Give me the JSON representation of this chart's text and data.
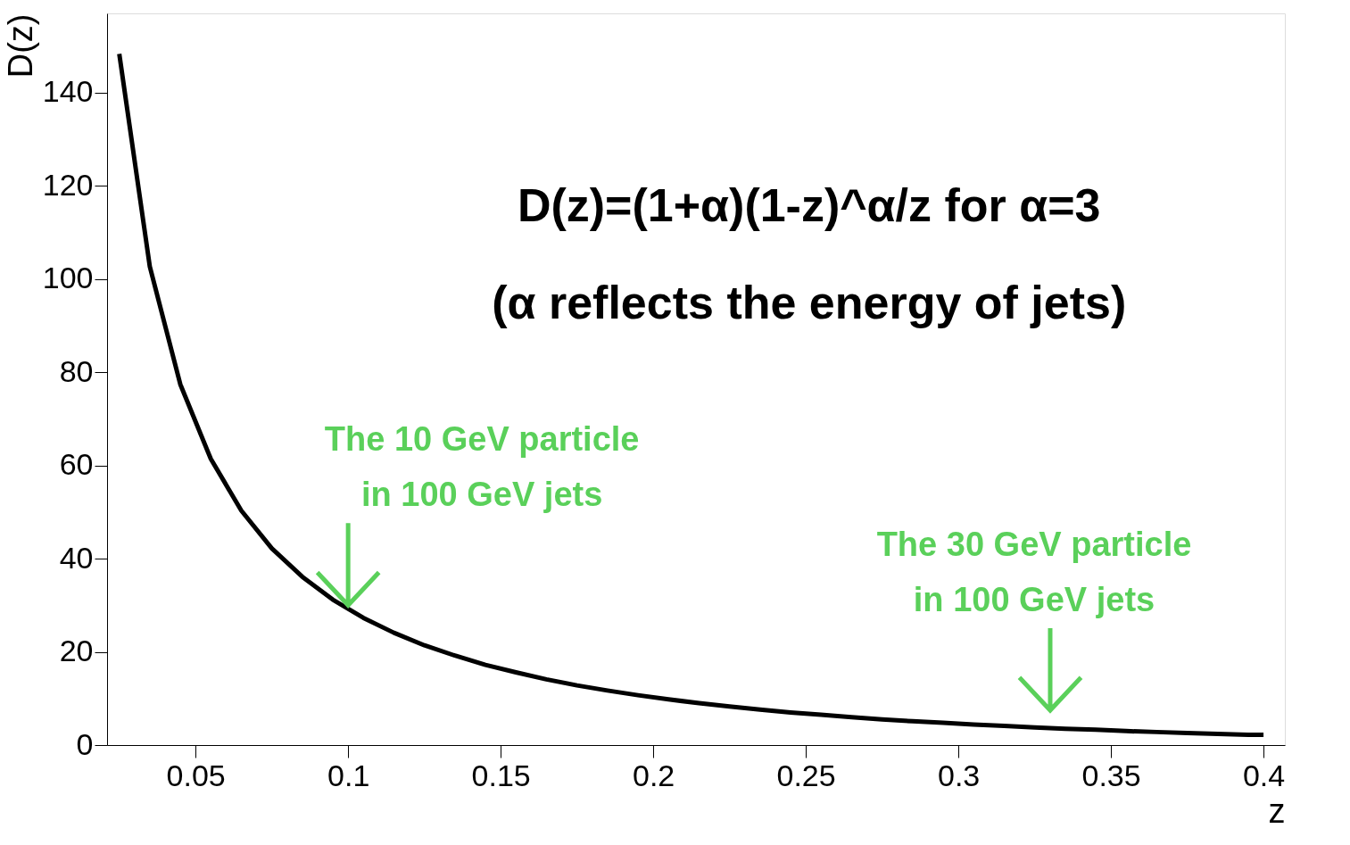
{
  "chart_data": {
    "type": "line",
    "xlabel": "z",
    "ylabel": "D(z)",
    "x": [
      0.025,
      0.035,
      0.045,
      0.055,
      0.065,
      0.075,
      0.085,
      0.095,
      0.105,
      0.115,
      0.125,
      0.135,
      0.145,
      0.155,
      0.165,
      0.175,
      0.185,
      0.195,
      0.205,
      0.215,
      0.225,
      0.235,
      0.245,
      0.255,
      0.265,
      0.275,
      0.285,
      0.295,
      0.305,
      0.315,
      0.325,
      0.335,
      0.345,
      0.355,
      0.365,
      0.375,
      0.385,
      0.395,
      0.4
    ],
    "series": [
      {
        "color": "#000000",
        "values": [
          148.3,
          102.7,
          77.4,
          61.4,
          50.3,
          42.2,
          36.1,
          31.2,
          27.3,
          24.1,
          21.4,
          19.2,
          17.2,
          15.6,
          14.1,
          12.8,
          11.7,
          10.7,
          9.8,
          9.0,
          8.3,
          7.6,
          7.0,
          6.5,
          6.0,
          5.5,
          5.1,
          4.8,
          4.4,
          4.1,
          3.8,
          3.5,
          3.3,
          3.0,
          2.8,
          2.6,
          2.4,
          2.2,
          2.2
        ]
      }
    ],
    "xlim": [
      0.021,
      0.407
    ],
    "ylim": [
      0,
      157
    ],
    "xticks": [
      0.05,
      0.1,
      0.15,
      0.2,
      0.25,
      0.3,
      0.35,
      0.4
    ],
    "yticks": [
      0,
      20,
      40,
      60,
      80,
      100,
      120,
      140
    ],
    "grid": false,
    "marker": "none",
    "line_style": "solid",
    "annotations": [
      "D(z)=(1+α)(1-z)^α/z for α=3",
      "(α reflects the energy of jets)",
      {
        "text": "The 10 GeV particle\nin 100 GeV jets",
        "x": 0.1,
        "y": 30
      },
      "The 30 GeV particle\nin 100 GeV jets"
    ]
  }
}
